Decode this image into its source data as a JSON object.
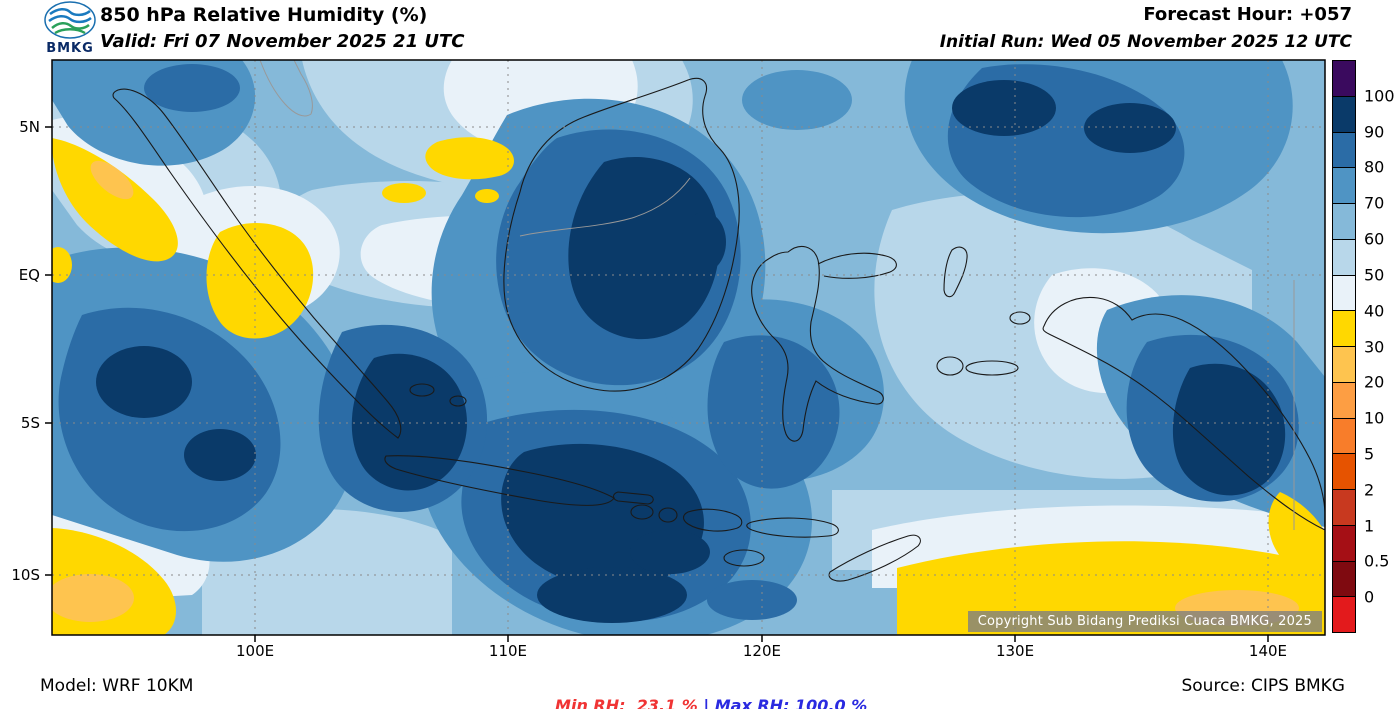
{
  "header": {
    "logo_text": "BMKG",
    "title": "850 hPa Relative Humidity (%)",
    "forecast_hour": "Forecast Hour: +057",
    "valid": "Valid: Fri 07 November 2025 21 UTC",
    "initial_run": "Initial Run: Wed 05 November 2025 12 UTC"
  },
  "map": {
    "x_ticks": [
      "100E",
      "110E",
      "120E",
      "130E",
      "140E"
    ],
    "y_ticks": [
      "5N",
      "EQ",
      "5S",
      "10S"
    ],
    "copyright": "Copyright Sub Bidang Prediksi Cuaca BMKG, 2025"
  },
  "colorbar": {
    "tick_labels": [
      "100",
      "90",
      "80",
      "70",
      "60",
      "50",
      "40",
      "30",
      "20",
      "10",
      "5",
      "2",
      "1",
      "0.5",
      "0"
    ],
    "segment_colors": [
      "#3a0a5e",
      "#0a3a69",
      "#2b6ca6",
      "#4f94c4",
      "#85b9d9",
      "#b8d7ea",
      "#e9f2f9",
      "#ffd800",
      "#fec44f",
      "#fd9e43",
      "#f87d2a",
      "#e65300",
      "#c8391f",
      "#a50f15",
      "#7f0a10",
      "#e31a1c"
    ]
  },
  "footer": {
    "model": "Model: WRF 10KM",
    "min_rh": "Min RH:  23.1 %",
    "separator": "|",
    "max_rh": "Max RH: 100.0 %",
    "source": "Source: CIPS BMKG",
    "min_color": "#f03434",
    "max_color": "#2a2ae0"
  },
  "chart_data": {
    "type": "heatmap",
    "title": "850 hPa Relative Humidity (%)",
    "model": "WRF 10KM",
    "source": "CIPS BMKG",
    "forecast_hour": 57,
    "valid_time": "Fri 07 November 2025 21 UTC",
    "initial_run": "Wed 05 November 2025 12 UTC",
    "min_rh_percent": 23.1,
    "max_rh_percent": 100.0,
    "x_tick_labels": [
      "100E",
      "110E",
      "120E",
      "130E",
      "140E"
    ],
    "y_tick_labels": [
      "5N",
      "EQ",
      "5S",
      "10S"
    ],
    "colorbar_levels": [
      0,
      0.5,
      1,
      2,
      5,
      10,
      20,
      30,
      40,
      50,
      60,
      70,
      80,
      90,
      100
    ],
    "colorbar_unit": "%",
    "legend_position": "right"
  }
}
